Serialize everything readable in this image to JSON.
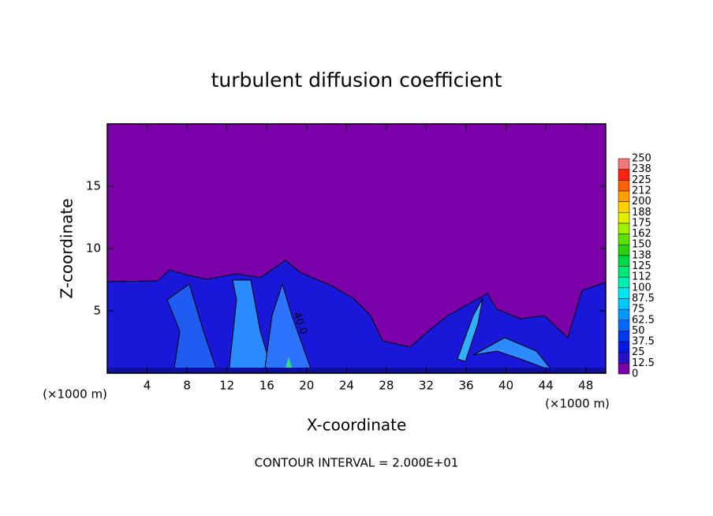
{
  "chart_data": {
    "type": "contour",
    "title": "turbulent diffusion coefficient",
    "x_label": "X-coordinate",
    "y_label": "Z-coordinate",
    "x_unit": "(×1000 m)",
    "y_unit": "(×1000 m)",
    "footer": "CONTOUR INTERVAL = 2.000E+01",
    "annotations": [
      "40.0"
    ],
    "xlim": [
      0,
      50
    ],
    "xticks": [
      4,
      8,
      12,
      16,
      20,
      24,
      28,
      32,
      36,
      40,
      44,
      48
    ],
    "ylim": [
      0,
      20
    ],
    "yticks": [
      5,
      10,
      15
    ],
    "colorbar": {
      "ticks": [
        0,
        12.5,
        25,
        37.5,
        50,
        62.5,
        75,
        87.5,
        100,
        {
          "value": 112.5,
          "label": "112"
        },
        125,
        {
          "value": 137.5,
          "label": "138"
        },
        150,
        {
          "value": 162.5,
          "label": "162"
        },
        175,
        {
          "value": 187.5,
          "label": "188"
        },
        200,
        {
          "value": 212.5,
          "label": "212"
        },
        225,
        {
          "value": 237.5,
          "label": "238"
        },
        250
      ],
      "colors": [
        "#7800a8",
        "#2810c8",
        "#0818e0",
        "#0038f0",
        "#0068ff",
        "#0098ff",
        "#00c8ff",
        "#00e8f0",
        "#00f0b0",
        "#00e878",
        "#00d848",
        "#28d010",
        "#60e000",
        "#a0f000",
        "#e0f000",
        "#ffd000",
        "#ffa000",
        "#ff6000",
        "#ff2010",
        "#f07878"
      ]
    }
  }
}
